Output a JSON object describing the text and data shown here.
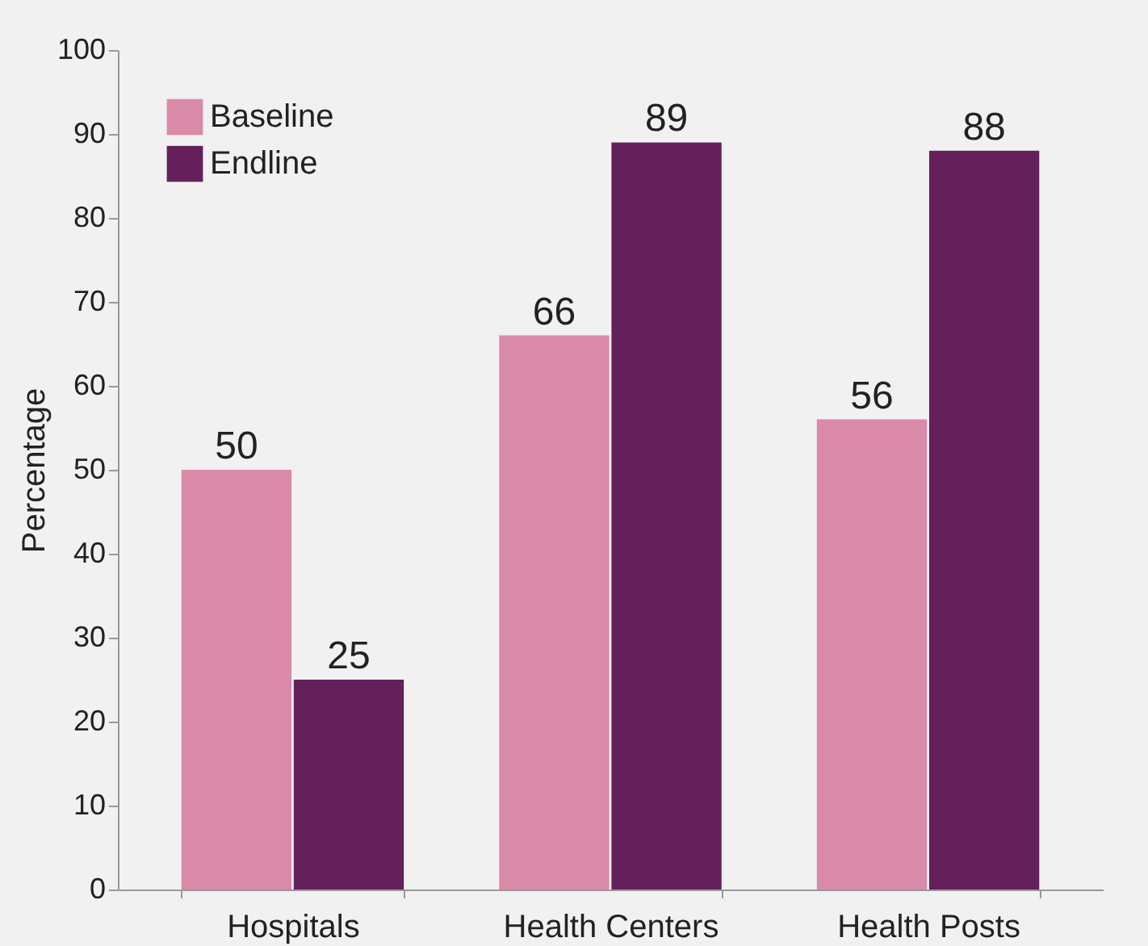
{
  "chart_data": {
    "type": "bar",
    "ylabel": "Percentage",
    "categories": [
      "Hospitals",
      "Health Centers",
      "Health Posts"
    ],
    "series": [
      {
        "name": "Baseline",
        "color": "#d98aa8",
        "values": [
          50,
          66,
          56
        ]
      },
      {
        "name": "Endline",
        "color": "#63205a",
        "values": [
          25,
          89,
          88
        ]
      }
    ],
    "ylim": [
      0,
      100
    ],
    "yticks": [
      0,
      10,
      20,
      30,
      40,
      50,
      60,
      70,
      80,
      90,
      100
    ],
    "data_labels": true,
    "legend": "top left",
    "grid": false
  }
}
